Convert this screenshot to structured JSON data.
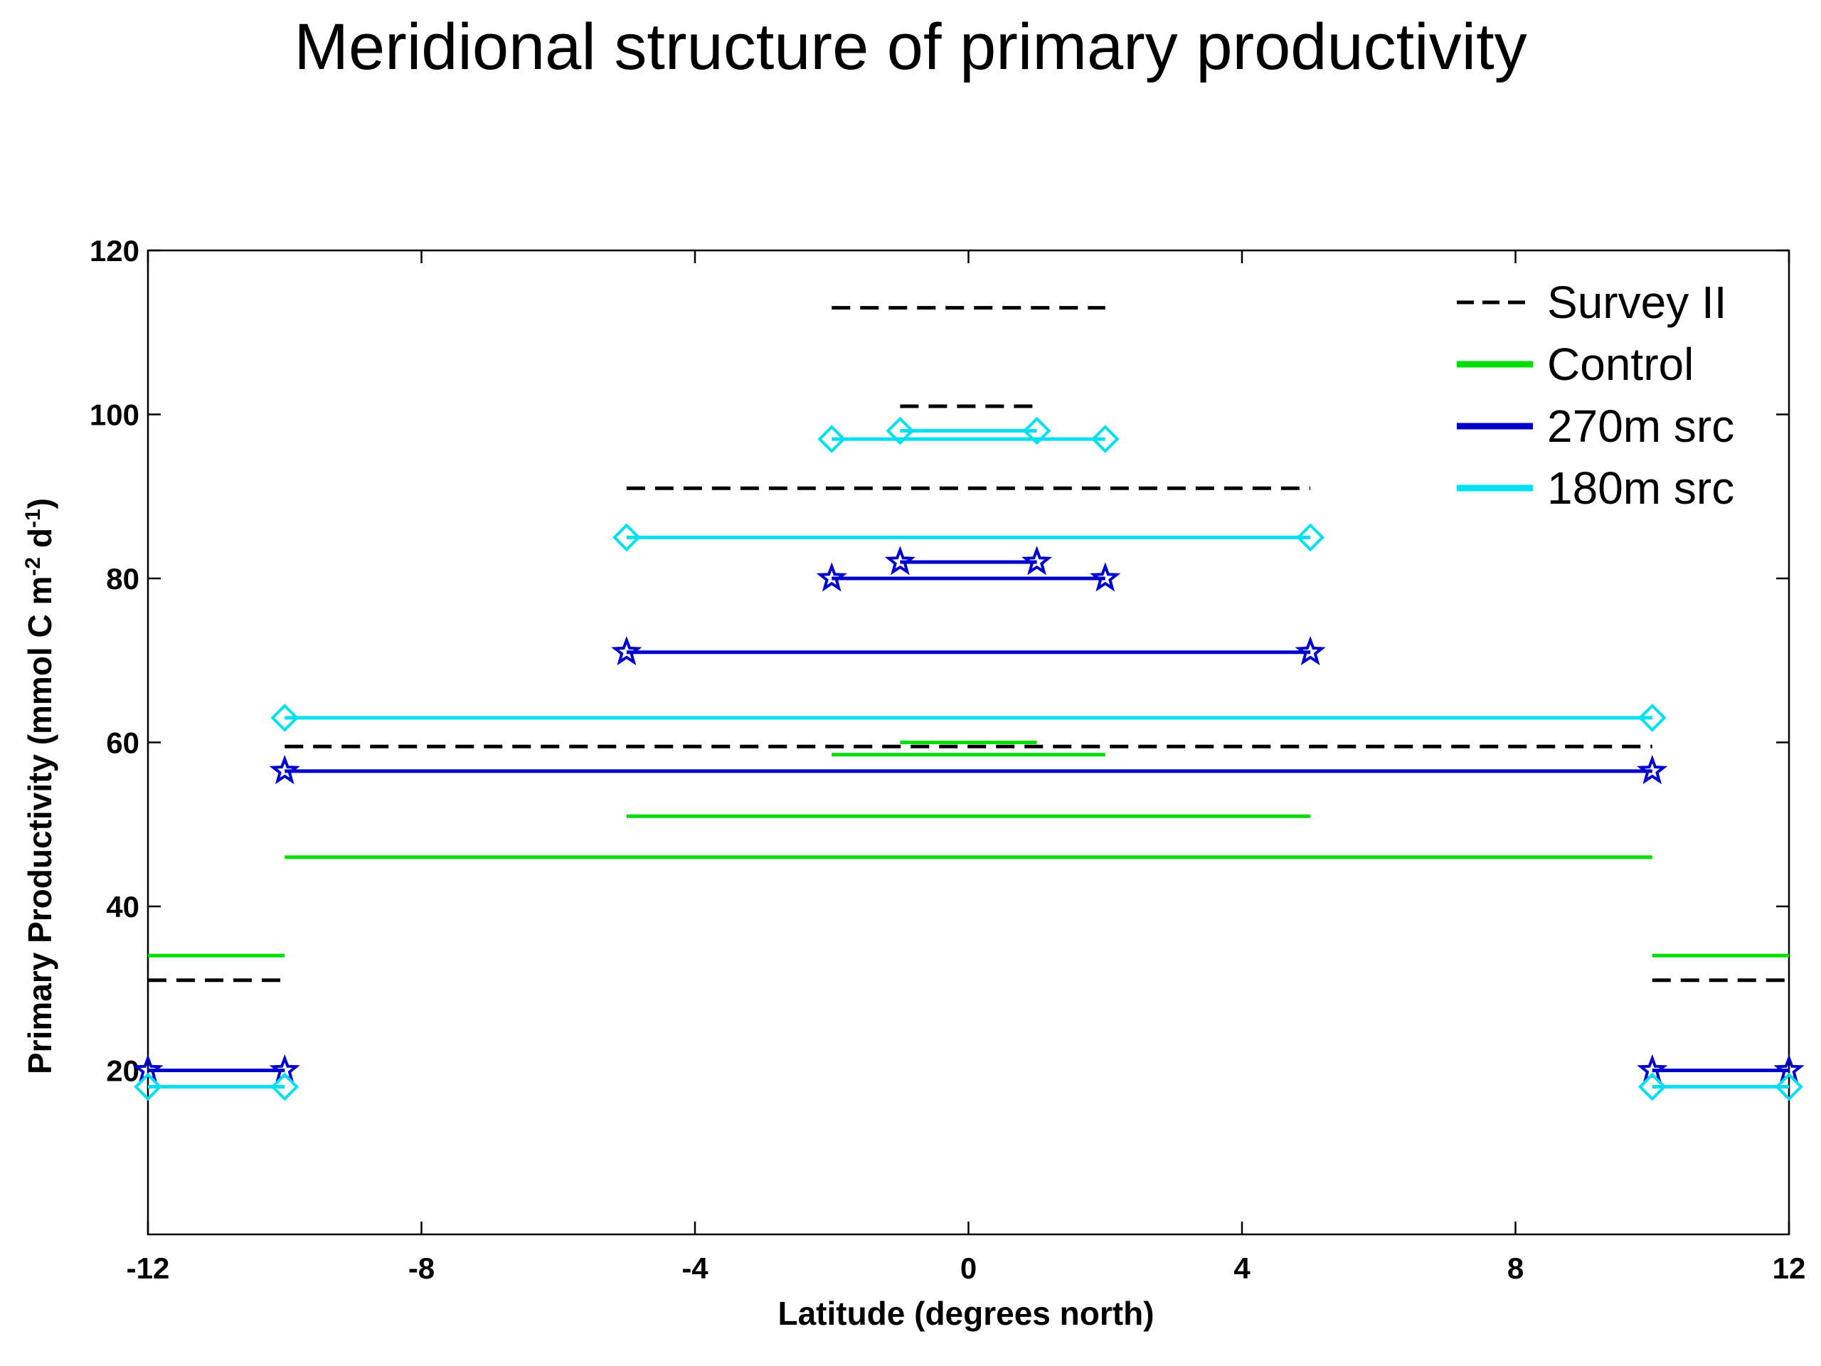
{
  "chart_data": {
    "type": "line",
    "title": "Meridional structure of primary productivity",
    "xlabel": "Latitude (degrees north)",
    "ylabel_parts": [
      "Primary Productivity (mmol C m",
      "-2",
      " d",
      "-1",
      ")"
    ],
    "xlim": [
      -12,
      12
    ],
    "ylim": [
      0,
      120
    ],
    "xticks": [
      -12,
      -8,
      -4,
      0,
      4,
      8,
      12
    ],
    "yticks": [
      20,
      40,
      60,
      80,
      100,
      120
    ],
    "grid": false,
    "legend_position": "top-right",
    "series": [
      {
        "name": "Survey II",
        "color": "#000000",
        "style": "dashed",
        "marker": "none",
        "segments": [
          {
            "x": [
              -12,
              -10
            ],
            "y": 31
          },
          {
            "x": [
              10,
              12
            ],
            "y": 31
          },
          {
            "x": [
              -10,
              10
            ],
            "y": 59.5
          },
          {
            "x": [
              -5,
              5
            ],
            "y": 91
          },
          {
            "x": [
              -1,
              1
            ],
            "y": 101
          },
          {
            "x": [
              -2,
              2
            ],
            "y": 113
          }
        ]
      },
      {
        "name": "Control",
        "color": "#00dd00",
        "style": "solid",
        "marker": "none",
        "segments": [
          {
            "x": [
              -12,
              -10
            ],
            "y": 34
          },
          {
            "x": [
              10,
              12
            ],
            "y": 34
          },
          {
            "x": [
              -10,
              10
            ],
            "y": 46
          },
          {
            "x": [
              -5,
              5
            ],
            "y": 51
          },
          {
            "x": [
              -2,
              2
            ],
            "y": 58.5
          },
          {
            "x": [
              -1,
              1
            ],
            "y": 60
          }
        ]
      },
      {
        "name": "270m src",
        "color": "#0000cc",
        "style": "solid",
        "marker": "star",
        "segments": [
          {
            "x": [
              -12,
              -10
            ],
            "y": 20
          },
          {
            "x": [
              10,
              12
            ],
            "y": 20
          },
          {
            "x": [
              -10,
              10
            ],
            "y": 56.5
          },
          {
            "x": [
              -5,
              5
            ],
            "y": 71
          },
          {
            "x": [
              -2,
              2
            ],
            "y": 80
          },
          {
            "x": [
              -1,
              1
            ],
            "y": 82
          }
        ]
      },
      {
        "name": "180m src",
        "color": "#00e0f0",
        "style": "solid",
        "marker": "diamond",
        "segments": [
          {
            "x": [
              -12,
              -10
            ],
            "y": 18
          },
          {
            "x": [
              10,
              12
            ],
            "y": 18
          },
          {
            "x": [
              -10,
              10
            ],
            "y": 63
          },
          {
            "x": [
              -5,
              5
            ],
            "y": 85
          },
          {
            "x": [
              -2,
              2
            ],
            "y": 97
          },
          {
            "x": [
              -1,
              1
            ],
            "y": 98
          }
        ]
      }
    ]
  }
}
